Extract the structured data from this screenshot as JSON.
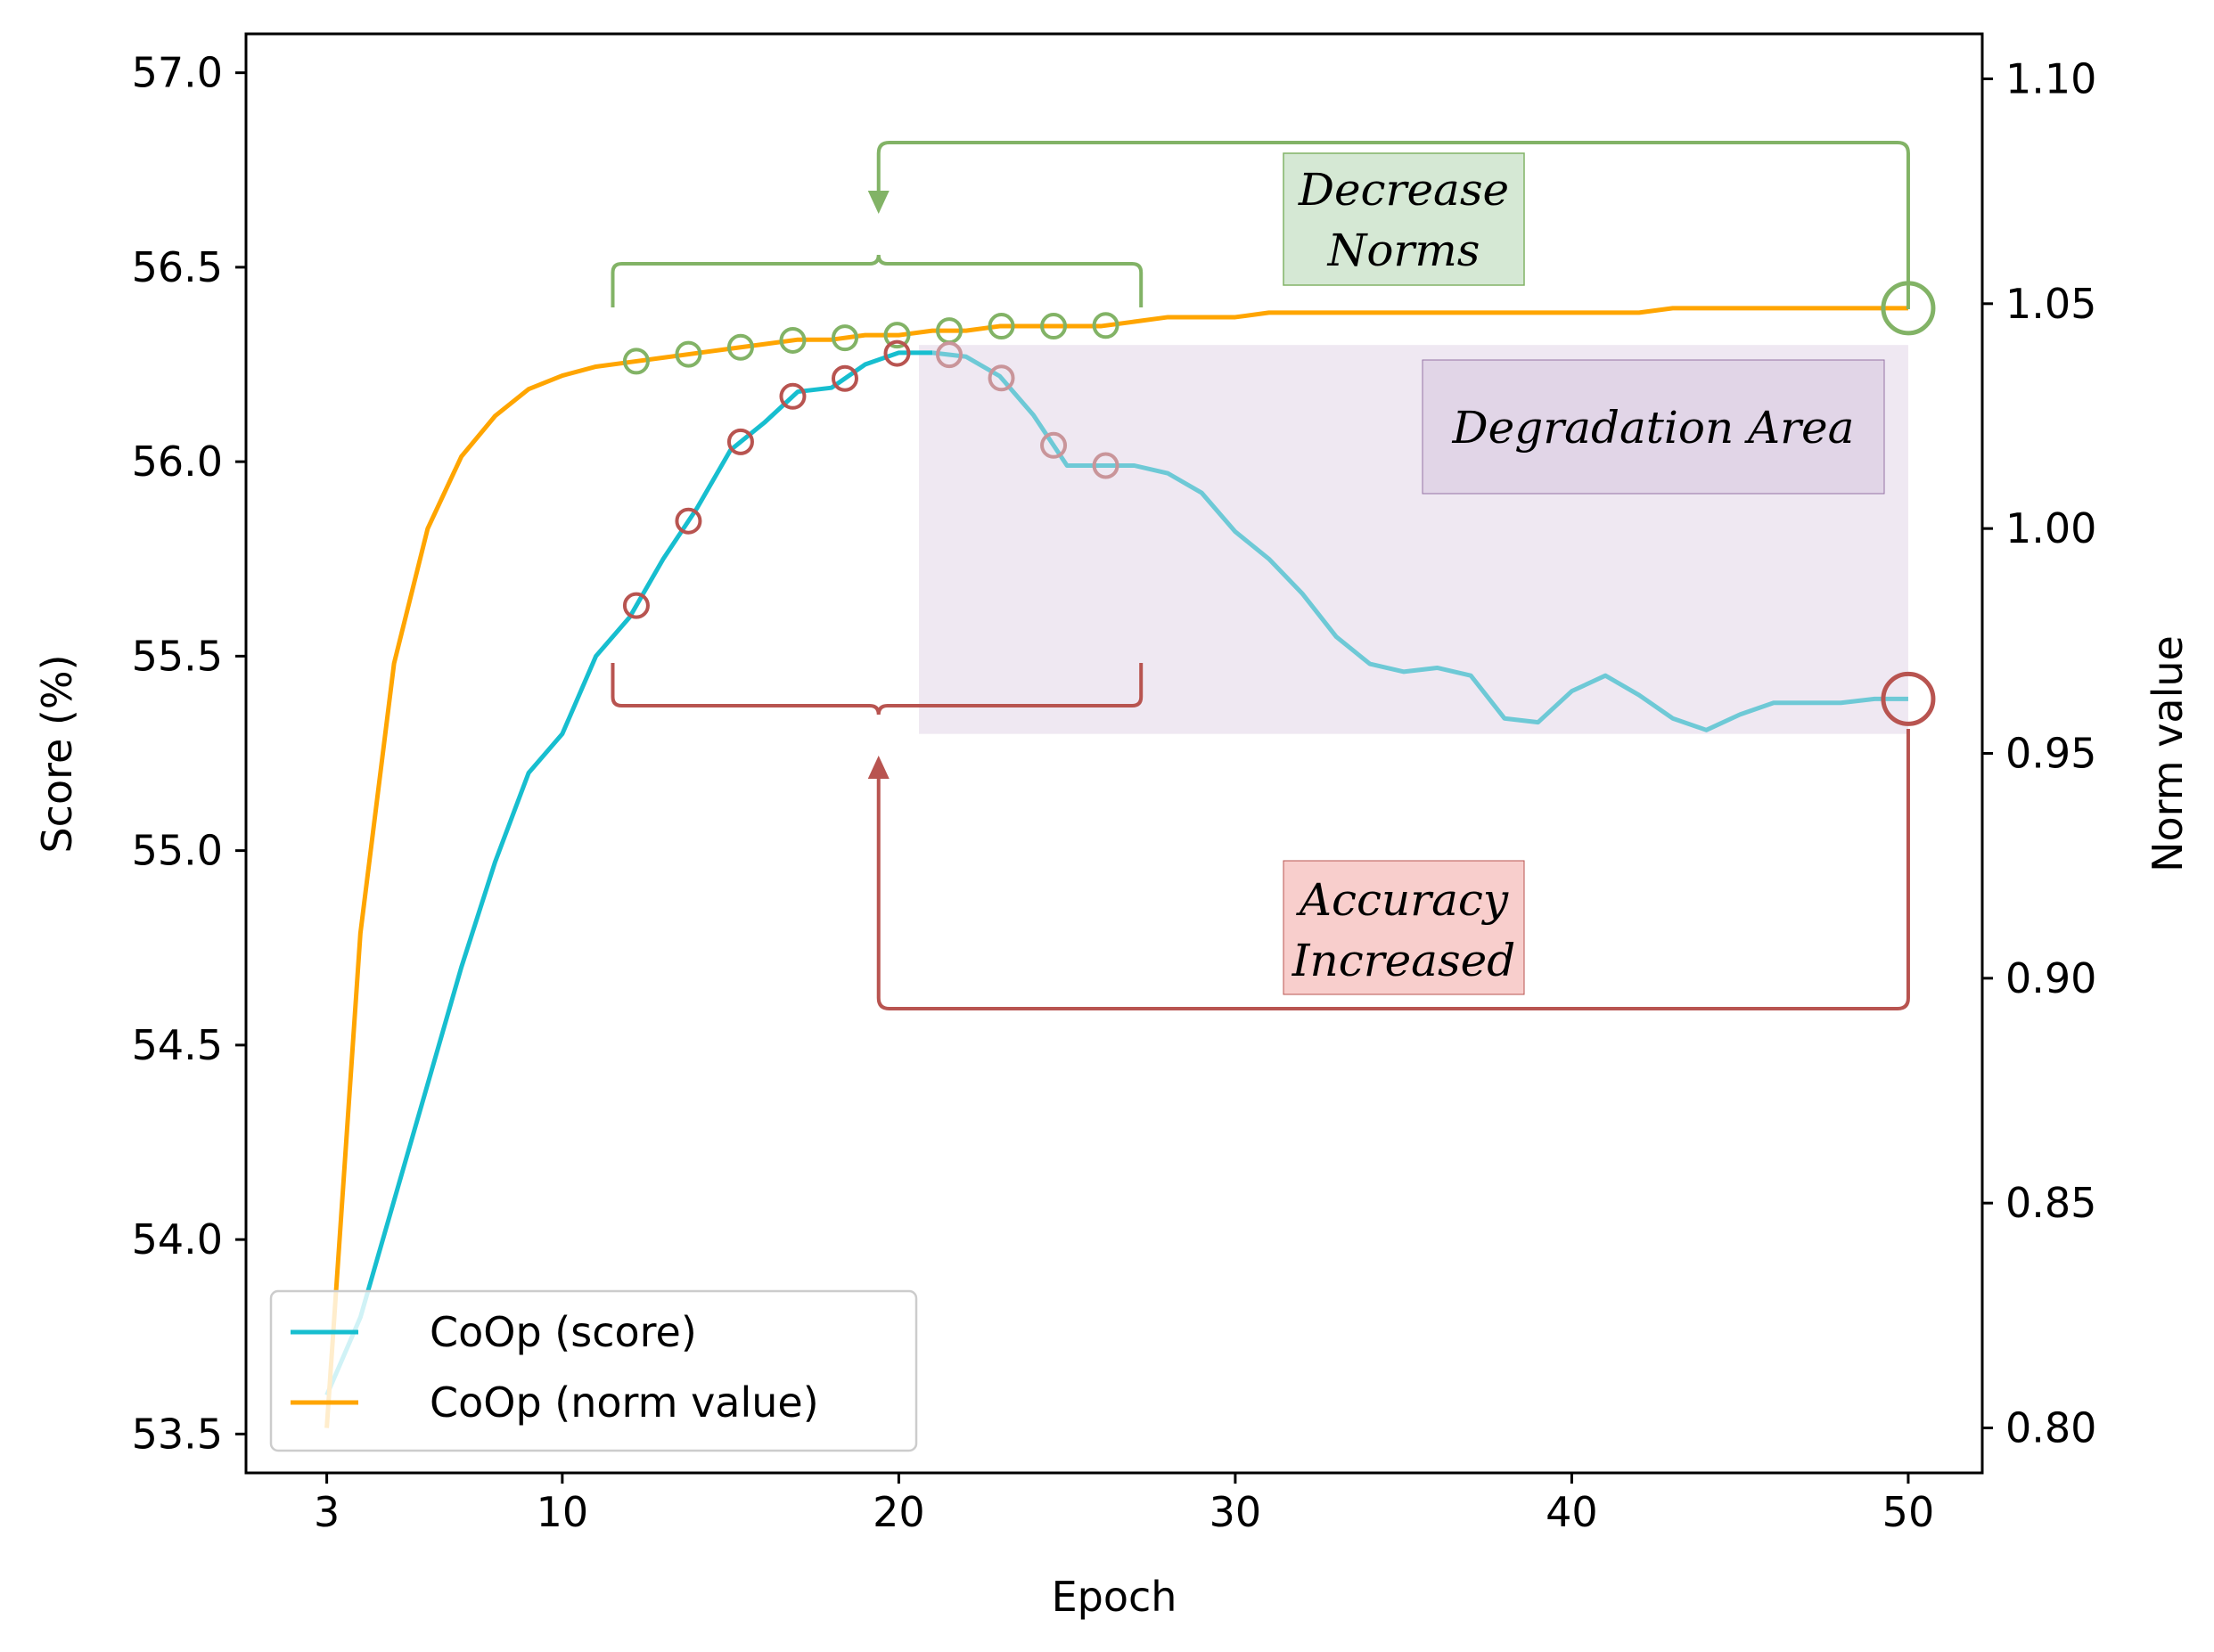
{
  "chart_data": {
    "type": "line",
    "xlabel": "Epoch",
    "ylabel": "Score (%)",
    "y2label": "Norm value",
    "xlim": [
      0.6,
      52.2
    ],
    "ylim": [
      53.4,
      57.1
    ],
    "y2lim": [
      0.79,
      1.11
    ],
    "xticks": [
      3,
      10,
      20,
      30,
      40,
      50
    ],
    "yticks": [
      "53.5",
      "54.0",
      "54.5",
      "55.0",
      "55.5",
      "56.0",
      "56.5",
      "57.0"
    ],
    "y2ticks": [
      "0.80",
      "0.85",
      "0.90",
      "0.95",
      "1.00",
      "1.05",
      "1.10"
    ],
    "grid": false,
    "legend_position": "lower-left",
    "series": [
      {
        "name": "CoOp (score)",
        "axis": "left",
        "color": "#17becf",
        "x": [
          3,
          4,
          5,
          6,
          7,
          8,
          9,
          10,
          11,
          12,
          13,
          14,
          15,
          16,
          17,
          18,
          19,
          20,
          21,
          22,
          23,
          24,
          25,
          26,
          27,
          28,
          29,
          30,
          31,
          32,
          33,
          34,
          35,
          36,
          37,
          38,
          39,
          40,
          41,
          42,
          43,
          44,
          45,
          46,
          47,
          48,
          49,
          50
        ],
        "values": [
          53.6,
          53.8,
          54.1,
          54.4,
          54.7,
          54.97,
          55.2,
          55.3,
          55.5,
          55.6,
          55.75,
          55.88,
          56.03,
          56.1,
          56.18,
          56.19,
          56.25,
          56.28,
          56.28,
          56.27,
          56.22,
          56.12,
          55.99,
          55.99,
          55.99,
          55.97,
          55.92,
          55.82,
          55.75,
          55.66,
          55.55,
          55.48,
          55.46,
          55.47,
          55.45,
          55.34,
          55.33,
          55.41,
          55.45,
          55.4,
          55.34,
          55.31,
          55.35,
          55.38,
          55.38,
          55.38,
          55.39,
          55.39
        ]
      },
      {
        "name": "CoOp (norm value)",
        "axis": "right",
        "color": "#ffa500",
        "x": [
          3,
          4,
          5,
          6,
          7,
          8,
          9,
          10,
          11,
          12,
          13,
          14,
          15,
          16,
          17,
          18,
          19,
          20,
          21,
          22,
          23,
          24,
          25,
          26,
          27,
          28,
          29,
          30,
          31,
          32,
          33,
          34,
          35,
          36,
          37,
          38,
          39,
          40,
          41,
          42,
          43,
          44,
          45,
          46,
          47,
          48,
          49,
          50
        ],
        "values": [
          0.8,
          0.91,
          0.97,
          1.0,
          1.016,
          1.025,
          1.031,
          1.034,
          1.036,
          1.037,
          1.038,
          1.039,
          1.04,
          1.041,
          1.042,
          1.042,
          1.043,
          1.043,
          1.044,
          1.044,
          1.045,
          1.045,
          1.045,
          1.045,
          1.046,
          1.047,
          1.047,
          1.047,
          1.048,
          1.048,
          1.048,
          1.048,
          1.048,
          1.048,
          1.048,
          1.048,
          1.048,
          1.048,
          1.048,
          1.048,
          1.049,
          1.049,
          1.049,
          1.049,
          1.049,
          1.049,
          1.049,
          1.049
        ]
      }
    ],
    "marker_epochs": [
      12.2,
      13.75,
      15.3,
      16.85,
      18.4,
      19.95,
      21.5,
      23.05,
      24.6,
      26.15
    ],
    "highlight_epoch": 50,
    "degradation_area": {
      "x0": 20.6,
      "x1": 50,
      "y0": 55.3,
      "y1": 56.3
    },
    "annotations": {
      "decrease_norms": [
        "Decrease",
        "Norms"
      ],
      "degradation_area": "Degradation Area",
      "accuracy_increased": [
        "Accuracy",
        "Increased"
      ]
    },
    "colors": {
      "green": "#82b366",
      "red": "#b85450",
      "purple_fill": "#e1d5e7",
      "purple_box": "#d9c9e0",
      "green_box": "#d5e8d4",
      "red_box": "#f8cecc"
    }
  }
}
